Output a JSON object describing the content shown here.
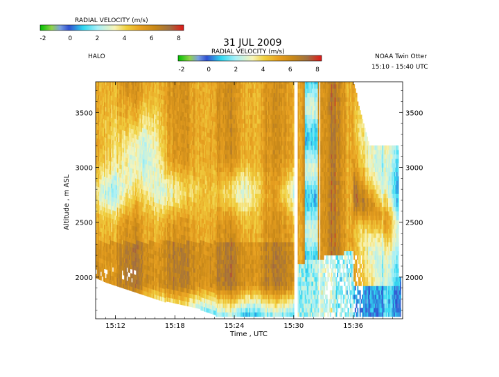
{
  "chart_data": {
    "type": "heatmap",
    "title": "31 JUL 2009",
    "platform_left": "HALO",
    "platform_right": "NOAA Twin Otter",
    "time_window": "15:10 - 15:40 UTC",
    "colorbar_top": {
      "label": "RADIAL VELOCITY (m/s)",
      "ticks": [
        "-2",
        "0",
        "2",
        "4",
        "6",
        "8"
      ],
      "range": [
        -2,
        8
      ]
    },
    "colorbar_mid": {
      "label": "RADIAL VELOCITY (m/s)",
      "ticks": [
        "-2",
        "0",
        "2",
        "4",
        "6",
        "8"
      ],
      "range": [
        -2,
        8
      ]
    },
    "xlabel": "Time , UTC",
    "ylabel": "Altitude , m ASL",
    "x_ticks": [
      "15:12",
      "15:18",
      "15:24",
      "15:30",
      "15:36"
    ],
    "y_ticks_left": [
      "2000",
      "2500",
      "3000",
      "3500"
    ],
    "y_ticks_right": [
      "2000",
      "2500",
      "3000",
      "3500"
    ],
    "xlim_minutes_utc": [
      "15:10",
      "15:41"
    ],
    "ylim": [
      1620,
      3780
    ],
    "colormap": [
      "#00c000",
      "#8fd24a",
      "#5aa0e8",
      "#3050d0",
      "#40e0f0",
      "#a0f0f8",
      "#f8f0b0",
      "#f0d040",
      "#e8a020",
      "#c88818",
      "#a87830",
      "#e02020"
    ]
  }
}
